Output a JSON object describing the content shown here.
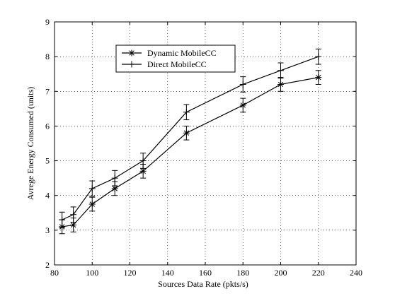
{
  "chart_data": {
    "type": "line",
    "title": "",
    "xlabel": "Sources Data Rate (pkts/s)",
    "ylabel": "Avrege Energy Consumed (units)",
    "xlim": [
      80,
      240
    ],
    "ylim": [
      2,
      9
    ],
    "xticks": [
      80,
      100,
      120,
      140,
      160,
      180,
      200,
      220,
      240
    ],
    "yticks": [
      2,
      3,
      4,
      5,
      6,
      7,
      8,
      9
    ],
    "grid": true,
    "legend": "top-left",
    "series": [
      {
        "name": "Dynamic MobileCC",
        "marker": "asterisk",
        "x": [
          84,
          90,
          100,
          112,
          127,
          150,
          180,
          200,
          220
        ],
        "y": [
          3.1,
          3.15,
          3.75,
          4.2,
          4.7,
          5.8,
          6.6,
          7.2,
          7.4
        ],
        "err": [
          0.2,
          0.2,
          0.2,
          0.2,
          0.2,
          0.2,
          0.2,
          0.2,
          0.2
        ]
      },
      {
        "name": "Direct MobileCC",
        "marker": "plus",
        "x": [
          84,
          90,
          100,
          112,
          127,
          150,
          180,
          200,
          220
        ],
        "y": [
          3.3,
          3.45,
          4.2,
          4.5,
          5.0,
          6.4,
          7.2,
          7.6,
          8.0
        ],
        "err": [
          0.22,
          0.22,
          0.22,
          0.22,
          0.22,
          0.22,
          0.22,
          0.22,
          0.22
        ]
      }
    ],
    "color": "#000000"
  }
}
